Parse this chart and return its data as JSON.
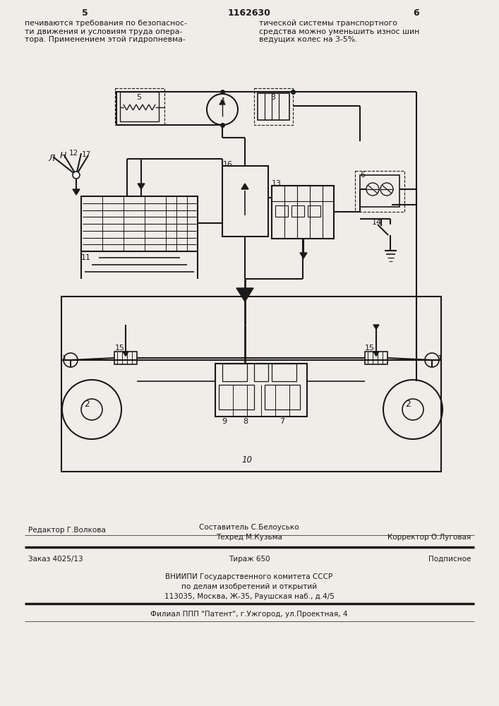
{
  "page_number_left": "5",
  "page_number_center": "1162630",
  "page_number_right": "6",
  "text_left": "печиваются требования по безопаснос-\nти движения и условиям труда опера-\nтора. Применением этой гидропневма-",
  "text_right": "тической системы транспортного\nсредства можно уменьшить износ шин\nведущих колес на 3-5%.",
  "sestavitel": "Составитель С.Белоуcько",
  "editor": "Редактор Г.Волкова",
  "techred": "Техред М.Кузьма",
  "korrektor": "Корректор О.Луговая",
  "order": "Заказ 4025/13",
  "tirazh": "Тираж 650",
  "podpisnoe": "Подписное",
  "vniigi1": "ВНИИПИ Государственного комитета СССР",
  "vniigi2": "по делам изобретений и открытий",
  "vniigi3": "113035, Москва, Ж-35, Раушская наб., д.4/5",
  "filial": "Филиал ППП \"Патент\", г.Ужгород, ул.Проектная, 4",
  "bg_color": "#f0ede8",
  "text_color": "#1a1a1a",
  "lc": "#1a1a1a"
}
